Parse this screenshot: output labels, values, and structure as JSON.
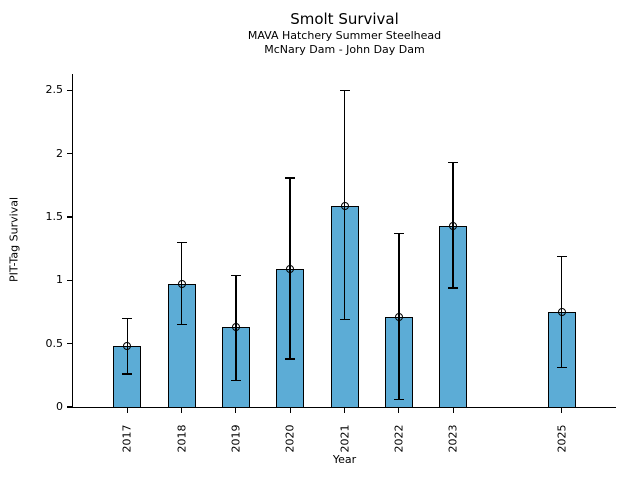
{
  "figure": {
    "title": "Smolt Survival",
    "subtitle_line1": "MAVA Hatchery Summer Steelhead",
    "subtitle_line2": "McNary Dam - John Day Dam",
    "xlabel": "Year",
    "ylabel": "PIT-Tag Survival"
  },
  "chart_data": {
    "type": "bar",
    "title": "Smolt Survival",
    "subtitle": [
      "MAVA Hatchery Summer Steelhead",
      "McNary Dam - John Day Dam"
    ],
    "xlabel": "Year",
    "ylabel": "PIT-Tag Survival",
    "categories": [
      "2017",
      "2018",
      "2019",
      "2020",
      "2021",
      "2022",
      "2023",
      "2025"
    ],
    "x_numeric": [
      2017,
      2018,
      2019,
      2020,
      2021,
      2022,
      2023,
      2025
    ],
    "values": [
      0.48,
      0.97,
      0.63,
      1.09,
      1.59,
      0.71,
      1.43,
      0.75
    ],
    "error_bars": {
      "low": [
        0.26,
        0.65,
        0.21,
        0.38,
        0.69,
        0.06,
        0.94,
        0.31
      ],
      "high": [
        0.7,
        1.3,
        1.04,
        1.81,
        2.5,
        1.37,
        1.93,
        1.19
      ]
    },
    "missing_years": [
      2024
    ],
    "xlim": [
      2016,
      2026
    ],
    "ylim": [
      0,
      2.63
    ],
    "yticks": [
      0,
      0.5,
      1,
      1.5,
      2,
      2.5
    ],
    "ytick_labels": [
      "0",
      "0.5",
      "1",
      "1.5",
      "2",
      "2.5"
    ],
    "grid": false,
    "legend": false,
    "bar_color": "#5CACD6",
    "bar_edge_color": "#000000",
    "error_color": "#000000",
    "marker": "open-circle"
  }
}
